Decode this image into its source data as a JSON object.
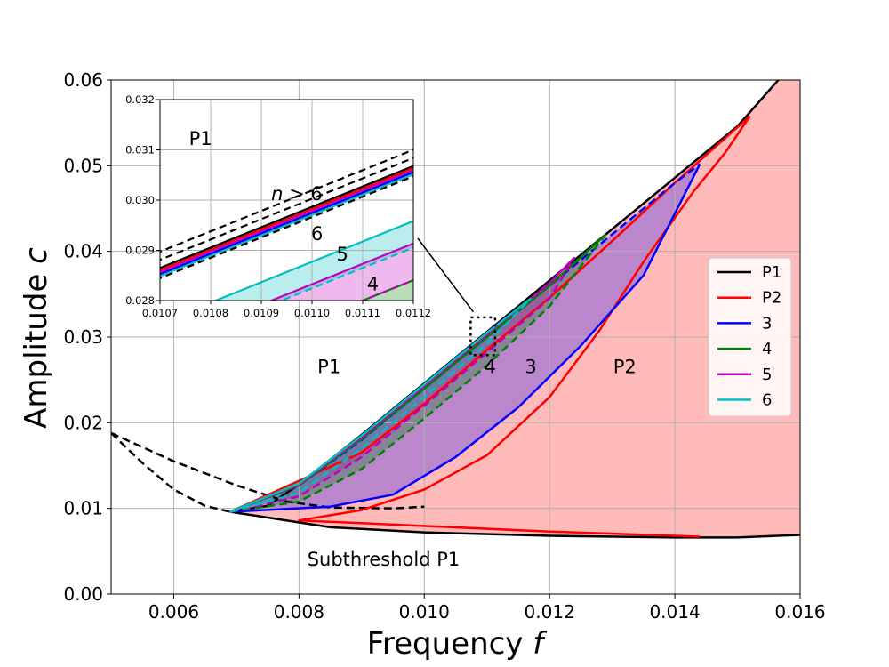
{
  "chart_data": {
    "type": "line",
    "title": "",
    "xlabel": "Frequency f",
    "ylabel": "Amplitude c",
    "xlabel_text": "Frequency ",
    "xlabel_var": "f",
    "ylabel_text": "Amplitude ",
    "ylabel_var": "c",
    "xlim": [
      0.005,
      0.016
    ],
    "ylim": [
      0.0,
      0.06
    ],
    "xticks": [
      "0.006",
      "0.008",
      "0.010",
      "0.012",
      "0.014",
      "0.016"
    ],
    "yticks": [
      "0.00",
      "0.01",
      "0.02",
      "0.03",
      "0.04",
      "0.05",
      "0.06"
    ],
    "grid": true,
    "legend_position": "center-right",
    "legend": [
      {
        "name": "P1",
        "color": "#000000"
      },
      {
        "name": "P2",
        "color": "#ff0000"
      },
      {
        "name": "3",
        "color": "#0000ff"
      },
      {
        "name": "4",
        "color": "#008000"
      },
      {
        "name": "5",
        "color": "#bf00bf"
      },
      {
        "name": "6",
        "color": "#00bfbf"
      }
    ],
    "region_labels": [
      "P1",
      "4",
      "3",
      "P2",
      "Subthreshold P1"
    ],
    "series": [
      {
        "name": "P1 upper boundary",
        "color": "#000000",
        "style": "solid",
        "points": [
          [
            0.0069,
            0.0096
          ],
          [
            0.0075,
            0.0103
          ],
          [
            0.008,
            0.0128
          ],
          [
            0.009,
            0.0186
          ],
          [
            0.01,
            0.0246
          ],
          [
            0.011,
            0.0306
          ],
          [
            0.012,
            0.0366
          ],
          [
            0.013,
            0.0426
          ],
          [
            0.014,
            0.0486
          ],
          [
            0.015,
            0.0546
          ],
          [
            0.0157,
            0.0604
          ]
        ]
      },
      {
        "name": "P1 lower boundary",
        "color": "#000000",
        "style": "solid",
        "points": [
          [
            0.0069,
            0.0096
          ],
          [
            0.0085,
            0.0078
          ],
          [
            0.01,
            0.0072
          ],
          [
            0.012,
            0.0068
          ],
          [
            0.014,
            0.0066
          ],
          [
            0.015,
            0.0066
          ],
          [
            0.016,
            0.0069
          ]
        ]
      },
      {
        "name": "P1 dashed left",
        "color": "#000000",
        "style": "dashed",
        "points": [
          [
            0.005,
            0.0188
          ],
          [
            0.0055,
            0.0153
          ],
          [
            0.006,
            0.0122
          ],
          [
            0.0065,
            0.0103
          ],
          [
            0.0069,
            0.0096
          ]
        ]
      },
      {
        "name": "P1 dashed branch",
        "color": "#000000",
        "style": "dashed",
        "points": [
          [
            0.005,
            0.0188
          ],
          [
            0.006,
            0.0155
          ],
          [
            0.007,
            0.0127
          ],
          [
            0.0078,
            0.0108
          ],
          [
            0.0085,
            0.0101
          ],
          [
            0.0095,
            0.01
          ],
          [
            0.01,
            0.0102
          ]
        ]
      },
      {
        "name": "P2 boundary",
        "color": "#ff0000",
        "style": "solid",
        "points": [
          [
            0.0069,
            0.0096
          ],
          [
            0.009,
            0.0165
          ],
          [
            0.01,
            0.0222
          ],
          [
            0.011,
            0.0285
          ],
          [
            0.012,
            0.0346
          ],
          [
            0.013,
            0.0412
          ],
          [
            0.014,
            0.048
          ],
          [
            0.0152,
            0.0558
          ]
        ]
      },
      {
        "name": "P2 tail",
        "color": "#ff0000",
        "style": "solid",
        "points": [
          [
            0.0152,
            0.0558
          ],
          [
            0.0148,
            0.0515
          ],
          [
            0.0143,
            0.047
          ],
          [
            0.0135,
            0.0388
          ],
          [
            0.0128,
            0.0308
          ],
          [
            0.012,
            0.023
          ],
          [
            0.011,
            0.0162
          ],
          [
            0.01,
            0.0122
          ],
          [
            0.009,
            0.0098
          ],
          [
            0.008,
            0.0086
          ],
          [
            0.012,
            0.0073
          ],
          [
            0.0144,
            0.0067
          ]
        ]
      },
      {
        "name": "3 outer",
        "color": "#0000ff",
        "style": "dashed",
        "points": [
          [
            0.0069,
            0.0096
          ],
          [
            0.008,
            0.0127
          ],
          [
            0.009,
            0.018
          ],
          [
            0.01,
            0.024
          ],
          [
            0.011,
            0.03
          ],
          [
            0.012,
            0.036
          ],
          [
            0.013,
            0.042
          ],
          [
            0.014,
            0.048
          ],
          [
            0.0144,
            0.0502
          ]
        ]
      },
      {
        "name": "3 inner",
        "color": "#0000ff",
        "style": "solid",
        "points": [
          [
            0.0069,
            0.0096
          ],
          [
            0.0085,
            0.0102
          ],
          [
            0.0095,
            0.0116
          ],
          [
            0.0105,
            0.016
          ],
          [
            0.0115,
            0.0218
          ],
          [
            0.0125,
            0.029
          ],
          [
            0.0135,
            0.0372
          ],
          [
            0.0144,
            0.0502
          ]
        ]
      },
      {
        "name": "4 outer",
        "color": "#008000",
        "style": "solid",
        "points": [
          [
            0.0069,
            0.0096
          ],
          [
            0.008,
            0.0127
          ],
          [
            0.009,
            0.0181
          ],
          [
            0.01,
            0.024
          ],
          [
            0.011,
            0.03
          ],
          [
            0.012,
            0.036
          ],
          [
            0.0129,
            0.042
          ]
        ]
      },
      {
        "name": "4 inner",
        "color": "#008000",
        "style": "dashed",
        "points": [
          [
            0.0069,
            0.0096
          ],
          [
            0.008,
            0.0108
          ],
          [
            0.009,
            0.0146
          ],
          [
            0.01,
            0.0205
          ],
          [
            0.011,
            0.0267
          ],
          [
            0.012,
            0.0336
          ],
          [
            0.0129,
            0.042
          ]
        ]
      },
      {
        "name": "5 outer",
        "color": "#bf00bf",
        "style": "solid",
        "points": [
          [
            0.0069,
            0.0096
          ],
          [
            0.008,
            0.0128
          ],
          [
            0.009,
            0.0183
          ],
          [
            0.01,
            0.0243
          ],
          [
            0.011,
            0.0303
          ],
          [
            0.012,
            0.0363
          ],
          [
            0.0124,
            0.0393
          ]
        ]
      },
      {
        "name": "5 inner",
        "color": "#bf00bf",
        "style": "dashed",
        "points": [
          [
            0.0069,
            0.0096
          ],
          [
            0.008,
            0.0114
          ],
          [
            0.009,
            0.016
          ],
          [
            0.01,
            0.022
          ],
          [
            0.011,
            0.0282
          ],
          [
            0.012,
            0.0345
          ],
          [
            0.0124,
            0.0393
          ]
        ]
      },
      {
        "name": "6 outer",
        "color": "#00bfbf",
        "style": "solid",
        "points": [
          [
            0.0069,
            0.0096
          ],
          [
            0.008,
            0.0129
          ],
          [
            0.009,
            0.0185
          ],
          [
            0.01,
            0.0245
          ],
          [
            0.011,
            0.0305
          ],
          [
            0.0117,
            0.0345
          ]
        ]
      },
      {
        "name": "6 inner",
        "color": "#00bfbf",
        "style": "dashed",
        "points": [
          [
            0.0069,
            0.0096
          ],
          [
            0.008,
            0.0118
          ],
          [
            0.009,
            0.017
          ],
          [
            0.01,
            0.023
          ],
          [
            0.011,
            0.0292
          ],
          [
            0.0117,
            0.0345
          ]
        ]
      }
    ],
    "inset": {
      "xlim": [
        0.0107,
        0.0112
      ],
      "ylim": [
        0.028,
        0.032
      ],
      "xticks": [
        "0.0107",
        "0.0108",
        "0.0109",
        "0.0110",
        "0.0111",
        "0.0112"
      ],
      "yticks": [
        "0.028",
        "0.029",
        "0.030",
        "0.031",
        "0.032"
      ],
      "labels": [
        "P1",
        "n > 6",
        "6",
        "5",
        "4"
      ],
      "label_n": "n",
      "label_n_rest": " > 6",
      "zoom_box": {
        "x": [
          0.01074,
          0.01113
        ],
        "y": [
          0.0279,
          0.0323
        ]
      }
    }
  }
}
